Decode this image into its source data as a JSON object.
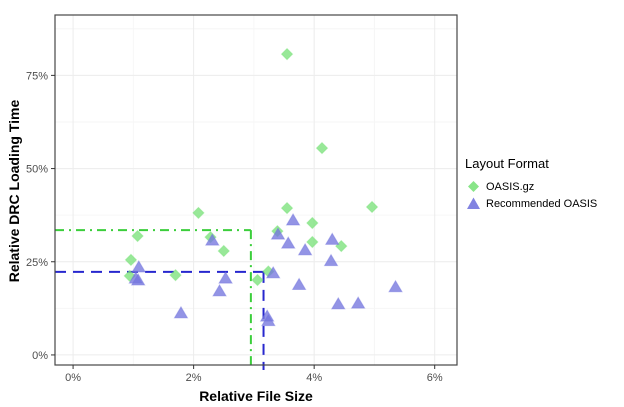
{
  "chart_data": {
    "type": "scatter",
    "title": "",
    "xlabel": "Relative File Size",
    "ylabel": "Relative DRC Loading Time",
    "x_unit": "percent",
    "y_unit": "percent",
    "xlim": [
      -0.3,
      6.37
    ],
    "ylim": [
      -2.7,
      91.2
    ],
    "x_ticks": [
      {
        "value": 0,
        "label": "0%"
      },
      {
        "value": 2,
        "label": "2%"
      },
      {
        "value": 4,
        "label": "4%"
      },
      {
        "value": 6,
        "label": "6%"
      }
    ],
    "y_ticks": [
      {
        "value": 0,
        "label": "0%"
      },
      {
        "value": 25,
        "label": "25%"
      },
      {
        "value": 50,
        "label": "50%"
      },
      {
        "value": 75,
        "label": "75%"
      }
    ],
    "x_minor": [
      1,
      3,
      5
    ],
    "y_minor": [
      12.5,
      37.5,
      62.5,
      87.5
    ],
    "grid": true,
    "legend_position": "right",
    "legend": {
      "title": "Layout Format",
      "entries": [
        {
          "label": "OASIS.gz",
          "marker": "diamond",
          "color": "#7BE27B"
        },
        {
          "label": "Recommended OASIS",
          "marker": "triangle",
          "color": "#7476DE"
        }
      ]
    },
    "series": [
      {
        "name": "OASIS.gz",
        "marker": "diamond",
        "color": "#7BE27B",
        "points": [
          [
            3.55,
            80.7
          ],
          [
            4.13,
            55.5
          ],
          [
            4.96,
            39.7
          ],
          [
            3.55,
            39.4
          ],
          [
            2.08,
            38.1
          ],
          [
            3.97,
            35.4
          ],
          [
            3.39,
            33.2
          ],
          [
            1.07,
            31.9
          ],
          [
            2.28,
            31.6
          ],
          [
            3.97,
            30.3
          ],
          [
            4.45,
            29.2
          ],
          [
            2.5,
            27.9
          ],
          [
            0.96,
            25.5
          ],
          [
            3.24,
            22.4
          ],
          [
            1.7,
            21.4
          ],
          [
            0.94,
            21.2
          ],
          [
            3.06,
            20.1
          ]
        ]
      },
      {
        "name": "Recommended OASIS",
        "marker": "triangle",
        "color": "#7476DE",
        "points": [
          [
            3.65,
            36.2
          ],
          [
            3.4,
            32.4
          ],
          [
            4.3,
            31.0
          ],
          [
            2.31,
            30.8
          ],
          [
            3.57,
            30.0
          ],
          [
            3.85,
            28.2
          ],
          [
            4.28,
            25.3
          ],
          [
            1.09,
            23.6
          ],
          [
            3.32,
            22.0
          ],
          [
            2.53,
            20.6
          ],
          [
            1.04,
            20.6
          ],
          [
            1.08,
            20.1
          ],
          [
            3.75,
            18.9
          ],
          [
            5.35,
            18.3
          ],
          [
            2.43,
            17.2
          ],
          [
            4.73,
            13.9
          ],
          [
            4.4,
            13.7
          ],
          [
            1.79,
            11.3
          ],
          [
            3.22,
            10.4
          ],
          [
            3.24,
            9.2
          ]
        ]
      }
    ],
    "reference_lines": [
      {
        "name": "oasis-gz-summary",
        "series": "OASIS.gz",
        "x": 2.95,
        "y": 33.5,
        "h_end": 2.95,
        "color": "#3BCE3B",
        "dash": "9 5 2 5",
        "style": "dash-dot"
      },
      {
        "name": "recommended-oasis-summary",
        "series": "Recommended OASIS",
        "x": 3.16,
        "y": 22.3,
        "h_end": 3.27,
        "color": "#2727CE",
        "dash": "11 7",
        "style": "long-dash"
      }
    ],
    "colors": {
      "panel_border": "#464646",
      "grid_major": "#ECECEC",
      "grid_minor": "#F6F6F6",
      "tick_label": "#4D4D4D",
      "tick_mark": "#333333"
    }
  }
}
